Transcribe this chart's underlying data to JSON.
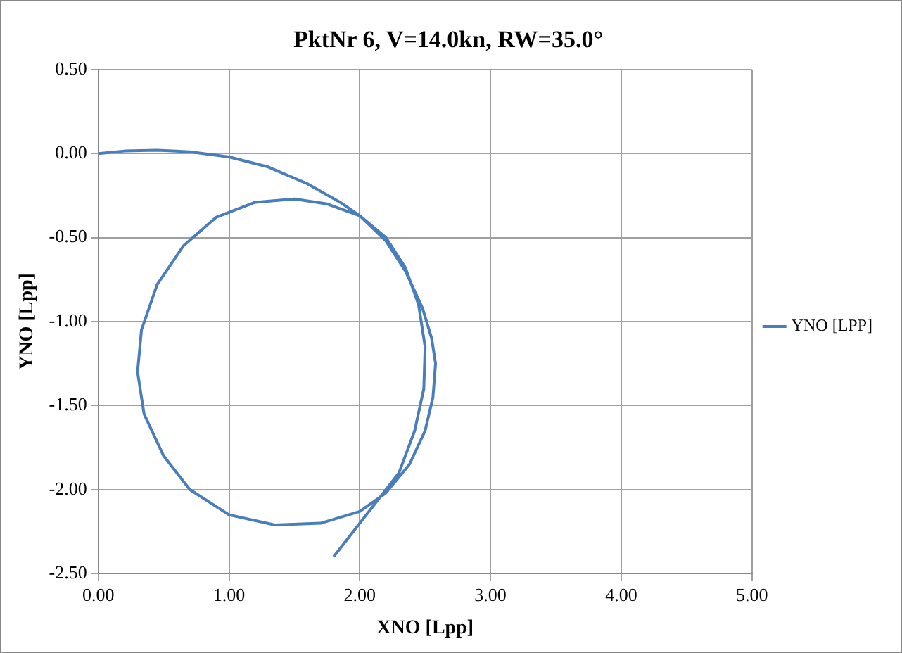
{
  "chart_data": {
    "type": "line",
    "title": "PktNr 6, V=14.0kn, RW=35.0°",
    "xlabel": "XNO [Lpp]",
    "ylabel": "YNO [Lpp]",
    "xlim": [
      0,
      5
    ],
    "xticks": [
      {
        "value": 0,
        "label": "0.00"
      },
      {
        "value": 1,
        "label": "1.00"
      },
      {
        "value": 2,
        "label": "2.00"
      },
      {
        "value": 3,
        "label": "3.00"
      },
      {
        "value": 4,
        "label": "4.00"
      },
      {
        "value": 5,
        "label": "5.00"
      }
    ],
    "ylim": [
      -2.5,
      0.5
    ],
    "yticks": [
      {
        "value": -2.5,
        "label": "-2.50"
      },
      {
        "value": -2,
        "label": "-2.00"
      },
      {
        "value": -1.5,
        "label": "-1.50"
      },
      {
        "value": -1,
        "label": "-1.00"
      },
      {
        "value": -0.5,
        "label": "-0.50"
      },
      {
        "value": 0,
        "label": "0.00"
      },
      {
        "value": 0.5,
        "label": "0.50"
      }
    ],
    "grid": true,
    "legend": "right",
    "marker": "none",
    "line_style": "solid",
    "series": [
      {
        "name": "YNO [LPP]",
        "color": "#4a7ebb",
        "x": [
          0,
          0.2,
          0.45,
          0.7,
          1.0,
          1.3,
          1.6,
          1.85,
          2.0,
          2.2,
          2.35,
          2.48,
          2.55,
          2.58,
          2.56,
          2.5,
          2.38,
          2.2,
          2.0,
          1.7,
          1.35,
          1.0,
          0.7,
          0.5,
          0.35,
          0.3,
          0.33,
          0.45,
          0.65,
          0.9,
          1.2,
          1.5,
          1.75,
          2.0,
          2.2,
          2.35,
          2.45,
          2.5,
          2.49,
          2.42,
          2.3,
          2.1,
          1.95,
          1.8
        ],
        "values": [
          0,
          0.015,
          0.02,
          0.01,
          -0.02,
          -0.08,
          -0.18,
          -0.29,
          -0.37,
          -0.52,
          -0.7,
          -0.92,
          -1.1,
          -1.25,
          -1.45,
          -1.65,
          -1.85,
          -2.02,
          -2.13,
          -2.2,
          -2.21,
          -2.15,
          -2.0,
          -1.8,
          -1.55,
          -1.3,
          -1.05,
          -0.78,
          -0.55,
          -0.38,
          -0.29,
          -0.27,
          -0.3,
          -0.37,
          -0.5,
          -0.68,
          -0.9,
          -1.15,
          -1.4,
          -1.65,
          -1.9,
          -2.1,
          -2.25,
          -2.4
        ]
      }
    ]
  }
}
